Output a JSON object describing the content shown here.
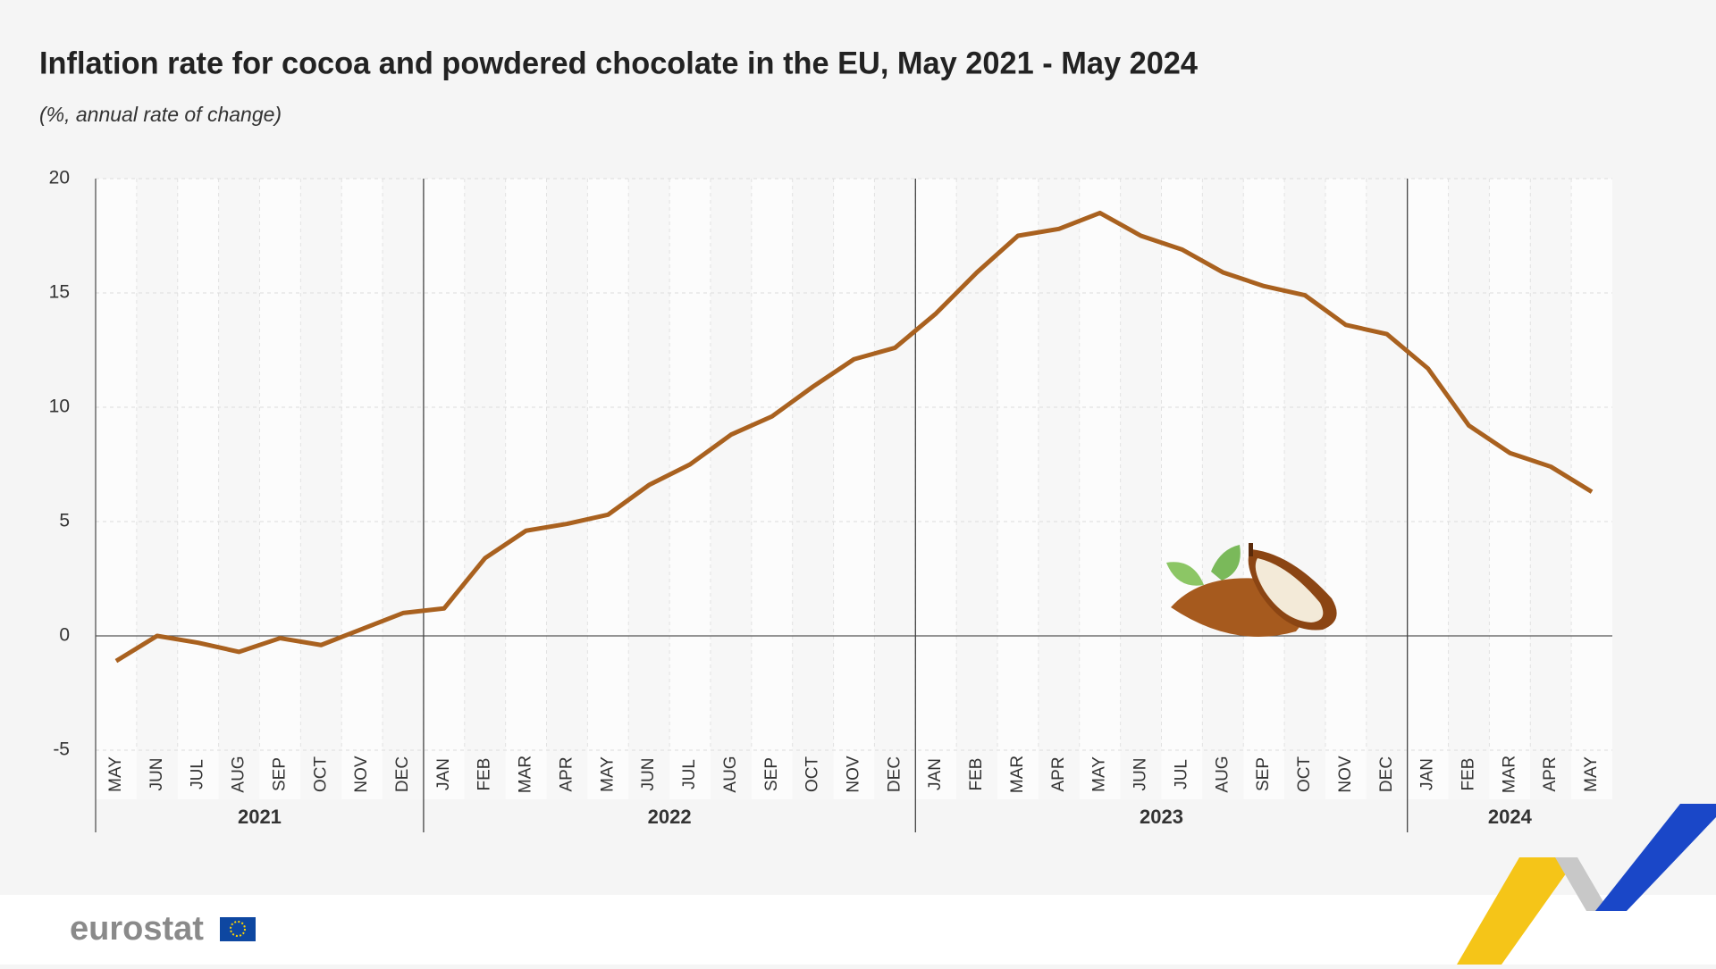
{
  "chart_data": {
    "type": "line",
    "title": "Inflation rate for cocoa and powdered chocolate in the EU, May 2021 - May 2024",
    "subtitle": "(%, annual rate of change)",
    "groups": [
      {
        "year": "2021",
        "months": [
          "MAY",
          "JUN",
          "JUL",
          "AUG",
          "SEP",
          "OCT",
          "NOV",
          "DEC"
        ]
      },
      {
        "year": "2022",
        "months": [
          "JAN",
          "FEB",
          "MAR",
          "APR",
          "MAY",
          "JUN",
          "JUL",
          "AUG",
          "SEP",
          "OCT",
          "NOV",
          "DEC"
        ]
      },
      {
        "year": "2023",
        "months": [
          "JAN",
          "FEB",
          "MAR",
          "APR",
          "MAY",
          "JUN",
          "JUL",
          "AUG",
          "SEP",
          "OCT",
          "NOV",
          "DEC"
        ]
      },
      {
        "year": "2024",
        "months": [
          "JAN",
          "FEB",
          "MAR",
          "APR",
          "MAY"
        ]
      }
    ],
    "values": [
      -1.1,
      0.0,
      -0.3,
      -0.7,
      -0.1,
      -0.4,
      0.3,
      1.0,
      1.2,
      3.4,
      4.6,
      4.9,
      5.3,
      6.6,
      7.5,
      8.8,
      9.6,
      10.9,
      12.1,
      12.6,
      14.1,
      15.9,
      17.5,
      17.8,
      18.5,
      17.5,
      16.9,
      15.9,
      15.3,
      14.9,
      13.6,
      13.2,
      11.7,
      9.2,
      8.0,
      7.4,
      6.3
    ],
    "color": "#a9611f",
    "ylim": [
      -5,
      20
    ],
    "yticks": [
      -5,
      0,
      5,
      10,
      15,
      20
    ],
    "grid": true,
    "logo": "eurostat"
  }
}
